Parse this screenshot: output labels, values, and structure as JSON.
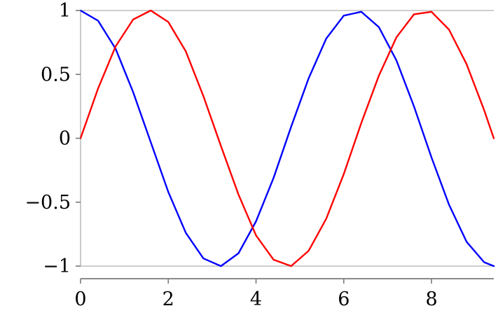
{
  "chart_data": {
    "type": "line",
    "title": "",
    "xlabel": "",
    "ylabel": "",
    "xlim": [
      0,
      9.42
    ],
    "ylim": [
      -1,
      1
    ],
    "grid": false,
    "x_ticks": [
      0,
      2,
      4,
      6,
      8
    ],
    "x_tick_labels": [
      "0",
      "2",
      "4",
      "6",
      "8"
    ],
    "y_ticks": [
      1,
      0.5,
      0,
      -0.5,
      -1
    ],
    "y_tick_labels": [
      "1",
      "0.5",
      "0",
      "−0.5",
      "−1"
    ],
    "x": [
      0,
      0.4,
      0.8,
      1.2,
      1.6,
      2.0,
      2.4,
      2.8,
      3.2,
      3.6,
      4.0,
      4.4,
      4.8,
      5.2,
      5.6,
      6.0,
      6.4,
      6.8,
      7.2,
      7.6,
      8.0,
      8.4,
      8.8,
      9.2,
      9.42
    ],
    "series": [
      {
        "color": "#0000ff",
        "values": [
          1.0,
          0.92,
          0.7,
          0.36,
          -0.03,
          -0.42,
          -0.74,
          -0.94,
          -1.0,
          -0.9,
          -0.65,
          -0.31,
          0.09,
          0.47,
          0.78,
          0.96,
          0.99,
          0.87,
          0.61,
          0.25,
          -0.15,
          -0.52,
          -0.81,
          -0.97,
          -1.0
        ]
      },
      {
        "color": "#ff0000",
        "values": [
          0.0,
          0.39,
          0.72,
          0.93,
          1.0,
          0.91,
          0.68,
          0.33,
          -0.06,
          -0.44,
          -0.76,
          -0.95,
          -1.0,
          -0.88,
          -0.63,
          -0.28,
          0.12,
          0.49,
          0.79,
          0.97,
          0.99,
          0.85,
          0.58,
          0.22,
          0.0
        ]
      }
    ]
  }
}
